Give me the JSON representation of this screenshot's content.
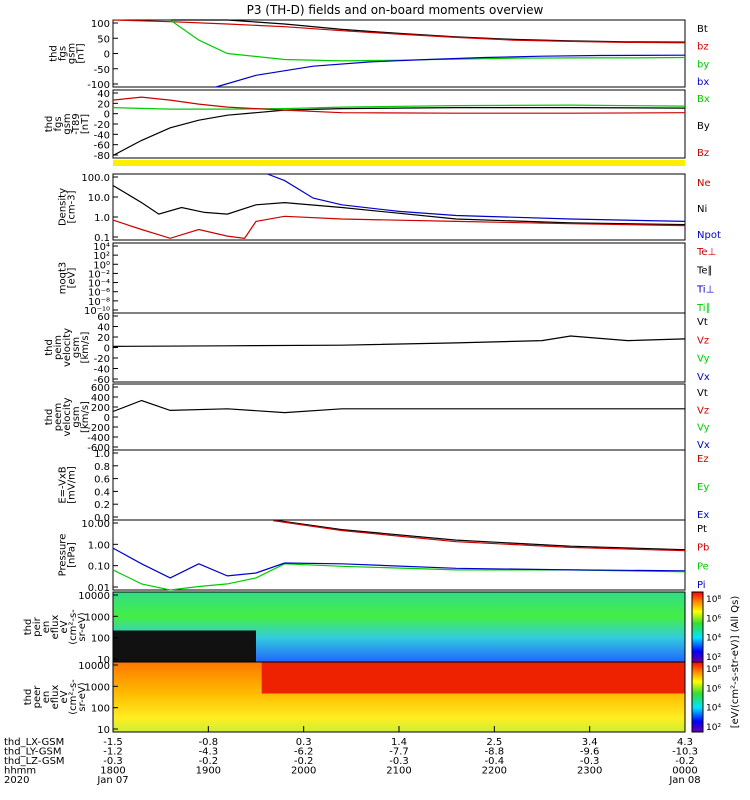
{
  "title": "P3 (TH-D) fields and on-board moments overview",
  "panels": [
    {
      "id": "fgs_gsm",
      "ylabel": [
        "thd",
        "fgs",
        "gsm",
        "[nT]"
      ],
      "ticks": [
        100,
        50,
        0,
        -50,
        -100
      ],
      "ylim": [
        -100,
        100
      ],
      "legend": [
        {
          "name": "Bt",
          "color": "#000000"
        },
        {
          "name": "bz",
          "color": "#cc0000"
        },
        {
          "name": "by",
          "color": "#00cc00"
        },
        {
          "name": "bx",
          "color": "#0000cc"
        }
      ]
    },
    {
      "id": "fgs_gsm_t89",
      "ylabel": [
        "thd",
        "fgs",
        "gsm",
        "-T89",
        "[nT]"
      ],
      "ticks": [
        40,
        20,
        0,
        -20,
        -40,
        -60,
        -80
      ],
      "ylim": [
        -95,
        40
      ],
      "legend": [
        {
          "name": "Bx",
          "color": "#00cc00"
        },
        {
          "name": "By",
          "color": "#000000"
        },
        {
          "name": "Bz",
          "color": "#cc0000"
        }
      ]
    },
    {
      "id": "density",
      "ylabel": [
        "Density",
        "[cm-3]"
      ],
      "ticks": [
        "100.0",
        "10.0",
        "1.0",
        "0.1"
      ],
      "ylim": [
        0.1,
        100
      ],
      "log": true,
      "legend": [
        {
          "name": "Ne",
          "color": "#cc0000"
        },
        {
          "name": "Ni",
          "color": "#000000"
        },
        {
          "name": "Npot",
          "color": "#0000cc"
        }
      ]
    },
    {
      "id": "temperature",
      "ylabel": [
        "moqt3",
        "[eV]"
      ],
      "ticks": [
        "10⁴",
        "10²",
        "10⁰",
        "10⁻²",
        "10⁻⁴",
        "10⁻⁶",
        "10⁻⁸",
        "10⁻¹⁰"
      ],
      "legend": [
        {
          "name": "Te⊥",
          "color": "#cc0000"
        },
        {
          "name": "Te∥",
          "color": "#000000"
        },
        {
          "name": "Ti⊥",
          "color": "#0000cc"
        },
        {
          "name": "Ti∥",
          "color": "#00cc00"
        }
      ]
    },
    {
      "id": "peim_velocity",
      "ylabel": [
        "thd",
        "peim",
        "velocity",
        "gsm",
        "[km/s]"
      ],
      "ticks": [
        60,
        40,
        20,
        0,
        -20,
        -40,
        -60
      ],
      "ylim": [
        -60,
        60
      ],
      "legend": [
        {
          "name": "Vt",
          "color": "#000000"
        },
        {
          "name": "Vz",
          "color": "#cc0000"
        },
        {
          "name": "Vy",
          "color": "#00cc00"
        },
        {
          "name": "Vx",
          "color": "#0000cc"
        }
      ]
    },
    {
      "id": "peem_velocity",
      "ylabel": [
        "thd",
        "peem",
        "velocity",
        "gsm",
        "[km/s]"
      ],
      "ticks": [
        600,
        400,
        200,
        0,
        -200,
        -400,
        -600
      ],
      "ylim": [
        -600,
        600
      ],
      "legend": [
        {
          "name": "Vt",
          "color": "#000000"
        },
        {
          "name": "Vz",
          "color": "#cc0000"
        },
        {
          "name": "Vy",
          "color": "#00cc00"
        },
        {
          "name": "Vx",
          "color": "#0000cc"
        }
      ]
    },
    {
      "id": "efield",
      "ylabel": [
        "E=-VxB",
        "[mV/m]"
      ],
      "ticks": [
        "1.0",
        "0.8",
        "0.6",
        "0.4",
        "0.2",
        "0.0"
      ],
      "ylim": [
        0,
        1
      ],
      "legend": [
        {
          "name": "Ez",
          "color": "#cc0000"
        },
        {
          "name": "Ey",
          "color": "#00cc00"
        },
        {
          "name": "Ex",
          "color": "#0000cc"
        }
      ]
    },
    {
      "id": "pressure",
      "ylabel": [
        "Pressure",
        "[nPa]"
      ],
      "ticks": [
        "10.00",
        "1.00",
        "0.10",
        "0.01"
      ],
      "ylim": [
        0.01,
        30
      ],
      "log": true,
      "legend": [
        {
          "name": "Pt",
          "color": "#000000"
        },
        {
          "name": "Pb",
          "color": "#cc0000"
        },
        {
          "name": "Pe",
          "color": "#00cc00"
        },
        {
          "name": "Pi",
          "color": "#0000cc"
        }
      ]
    },
    {
      "id": "peir_spec",
      "ylabel": [
        "thd",
        "peir",
        "en",
        "eflux",
        "eV",
        "(cm²-s-",
        "sr-eV)"
      ],
      "ticks": [
        "10000",
        "1000",
        "100",
        "10"
      ]
    },
    {
      "id": "peer_spec",
      "ylabel": [
        "thd",
        "peer",
        "en",
        "eflux",
        "eV",
        "(cm²-s-",
        "sr-eV)"
      ],
      "ticks": [
        "10000",
        "1000",
        "100",
        "10"
      ]
    }
  ],
  "colorbar": {
    "ticks": [
      "10⁸",
      "10⁶",
      "10⁴",
      "10²"
    ],
    "label": "[eV/(cm²-s-str-eV)] (All Qs)"
  },
  "chart_data": {
    "type": "line",
    "title": "P3 (TH-D) fields and on-board moments overview",
    "x_axis_rows": [
      {
        "label": "thd_LX-GSM",
        "values": [
          "-1.5",
          "-0.8",
          "0.3",
          "1.4",
          "2.5",
          "3.4",
          "4.3"
        ]
      },
      {
        "label": "thd_LY-GSM",
        "values": [
          "-1.2",
          "-4.3",
          "-6.2",
          "-7.7",
          "-8.8",
          "-9.6",
          "-10.3"
        ]
      },
      {
        "label": "thd_LZ-GSM",
        "values": [
          "-0.3",
          "-0.2",
          "-0.2",
          "-0.3",
          "-0.4",
          "-0.3",
          "-0.2"
        ]
      },
      {
        "label": "hhmm",
        "values": [
          "1800",
          "1900",
          "2000",
          "2100",
          "2200",
          "2300",
          "0000"
        ]
      },
      {
        "label": "2020",
        "values": [
          "Jan 07",
          "",
          "",
          "",
          "",
          "",
          "Jan 08"
        ]
      }
    ],
    "series": [
      {
        "name": "Bt",
        "panel": "fgs_gsm",
        "x": [
          0.1,
          0.2,
          0.3,
          0.4,
          0.5,
          0.6,
          0.7,
          0.8,
          0.9,
          1.0
        ],
        "y": [
          100,
          100,
          88,
          72,
          60,
          50,
          42,
          38,
          35,
          34
        ]
      },
      {
        "name": "bz",
        "panel": "fgs_gsm",
        "x": [
          0,
          0.1,
          0.2,
          0.3,
          0.4,
          0.5,
          0.6,
          0.7,
          0.8,
          0.9,
          1.0
        ],
        "y": [
          100,
          95,
          88,
          80,
          68,
          58,
          48,
          40,
          36,
          33,
          32
        ]
      },
      {
        "name": "by",
        "panel": "fgs_gsm",
        "x": [
          0.1,
          0.15,
          0.2,
          0.3,
          0.4,
          0.5,
          0.6,
          0.7,
          0.8,
          0.9,
          1.0
        ],
        "y": [
          100,
          40,
          0,
          -18,
          -22,
          -20,
          -17,
          -14,
          -13,
          -13,
          -12
        ]
      },
      {
        "name": "bx",
        "panel": "fgs_gsm",
        "x": [
          0.18,
          0.25,
          0.35,
          0.45,
          0.55,
          0.65,
          0.75,
          0.85,
          1.0
        ],
        "y": [
          -100,
          -65,
          -38,
          -25,
          -18,
          -12,
          -8,
          -6,
          -5
        ]
      },
      {
        "name": "Bx",
        "panel": "fgs_gsm_t89",
        "x": [
          0,
          0.1,
          0.2,
          0.3,
          0.4,
          0.6,
          0.8,
          1.0
        ],
        "y": [
          5,
          2,
          2,
          3,
          6,
          9,
          10,
          8
        ]
      },
      {
        "name": "By",
        "panel": "fgs_gsm_t89",
        "x": [
          0,
          0.05,
          0.1,
          0.15,
          0.2,
          0.25,
          0.3,
          0.4,
          0.6,
          0.8,
          1.0
        ],
        "y": [
          -90,
          -60,
          -35,
          -20,
          -10,
          -5,
          0,
          3,
          5,
          5,
          4
        ]
      },
      {
        "name": "Bz",
        "panel": "fgs_gsm_t89",
        "x": [
          0,
          0.05,
          0.1,
          0.15,
          0.2,
          0.3,
          0.4,
          0.6,
          0.8,
          1.0
        ],
        "y": [
          20,
          26,
          20,
          12,
          6,
          0,
          -5,
          -6,
          -6,
          -5
        ]
      },
      {
        "name": "Ni",
        "panel": "density",
        "x": [
          0,
          0.05,
          0.08,
          0.12,
          0.16,
          0.2,
          0.25,
          0.3,
          0.4,
          0.6,
          0.8,
          1.0
        ],
        "y": [
          30,
          5,
          1.5,
          3,
          1.8,
          1.5,
          4,
          5,
          3,
          0.9,
          0.6,
          0.5
        ]
      },
      {
        "name": "Ne",
        "panel": "density",
        "x": [
          0,
          0.05,
          0.1,
          0.15,
          0.2,
          0.23,
          0.25,
          0.3,
          0.4,
          0.6,
          0.8,
          1.0
        ],
        "y": [
          0.8,
          0.3,
          0.12,
          0.3,
          0.15,
          0.12,
          0.7,
          1.2,
          0.9,
          0.7,
          0.55,
          0.45
        ]
      },
      {
        "name": "Npot",
        "panel": "density",
        "x": [
          0.27,
          0.3,
          0.35,
          0.4,
          0.5,
          0.6,
          0.8,
          1.0
        ],
        "y": [
          100,
          50,
          8,
          4,
          2,
          1.3,
          0.9,
          0.7
        ]
      },
      {
        "name": "Vt",
        "panel": "peim_velocity",
        "x": [
          0,
          0.2,
          0.4,
          0.6,
          0.75,
          0.8,
          0.9,
          1.0
        ],
        "y": [
          2,
          3,
          4,
          8,
          12,
          20,
          12,
          15
        ]
      },
      {
        "name": "Vt",
        "panel": "peem_velocity",
        "x": [
          0,
          0.05,
          0.1,
          0.2,
          0.3,
          0.4,
          0.6,
          0.8,
          1.0
        ],
        "y": [
          100,
          300,
          120,
          150,
          80,
          150,
          150,
          150,
          150
        ]
      },
      {
        "name": "Pt",
        "panel": "pressure",
        "x": [
          0.28,
          0.4,
          0.6,
          0.8,
          1.0
        ],
        "y": [
          30,
          10,
          3,
          1.5,
          1.0
        ]
      },
      {
        "name": "Pb",
        "panel": "pressure",
        "x": [
          0.28,
          0.4,
          0.6,
          0.8,
          1.0
        ],
        "y": [
          28,
          9,
          2.5,
          1.3,
          0.9
        ]
      },
      {
        "name": "Pe",
        "panel": "pressure",
        "x": [
          0,
          0.05,
          0.1,
          0.15,
          0.2,
          0.25,
          0.3,
          0.4,
          0.6,
          0.8,
          1.0
        ],
        "y": [
          0.1,
          0.02,
          0.01,
          0.015,
          0.02,
          0.04,
          0.2,
          0.15,
          0.1,
          0.1,
          0.08
        ]
      },
      {
        "name": "Pi",
        "panel": "pressure",
        "x": [
          0,
          0.05,
          0.1,
          0.15,
          0.2,
          0.25,
          0.3,
          0.4,
          0.6,
          0.8,
          1.0
        ],
        "y": [
          1.2,
          0.2,
          0.04,
          0.2,
          0.05,
          0.07,
          0.22,
          0.2,
          0.12,
          0.1,
          0.09
        ]
      }
    ]
  }
}
